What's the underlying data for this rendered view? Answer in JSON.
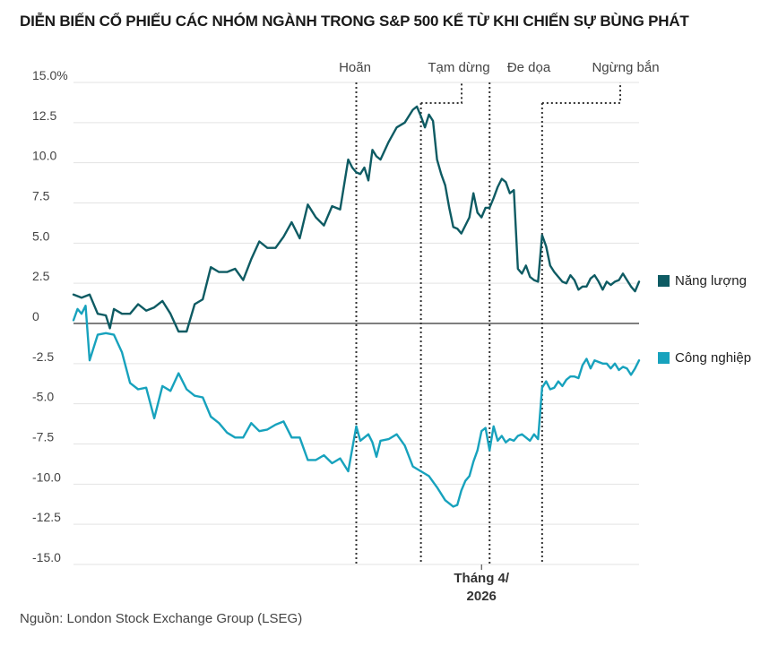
{
  "title": "DIỄN BIẾN CỔ PHIẾU CÁC NHÓM NGÀNH TRONG S&P 500 KỂ TỪ KHI CHIẾN SỰ BÙNG PHÁT",
  "source": "Nguồn: London Stock Exchange Group (LSEG)",
  "chart_data": {
    "type": "line",
    "title": "DIỄN BIẾN CỔ PHIẾU CÁC NHÓM NGÀNH TRONG S&P 500 KỂ TỪ KHI CHIẾN SỰ BÙNG PHÁT",
    "ylim": [
      -15,
      15
    ],
    "xlim": [
      0,
      140
    ],
    "y_ticks": [
      "15.0%",
      "12.5",
      "10.0",
      "7.5",
      "5.0",
      "2.5",
      "0",
      "-2.5",
      "-5.0",
      "-7.5",
      "-10.0",
      "-12.5",
      "-15.0"
    ],
    "y_tick_values": [
      15,
      12.5,
      10,
      7.5,
      5,
      2.5,
      0,
      -2.5,
      -5,
      -7.5,
      -10,
      -12.5,
      -15
    ],
    "x_label_line1": "Tháng 4/",
    "x_label_line2": "2026",
    "x_label_at": 101,
    "events": [
      {
        "label": "Hoãn",
        "x": 70
      },
      {
        "label": "Tạm dừng",
        "x": 86
      },
      {
        "label": "Đe dọa",
        "x": 103
      },
      {
        "label": "Ngừng bắn",
        "x": 116
      }
    ],
    "series": [
      {
        "name": "Năng lượng",
        "color": "#0e5b63",
        "x": [
          0,
          2,
          4,
          6,
          8,
          9,
          10,
          12,
          14,
          16,
          18,
          20,
          22,
          24,
          26,
          28,
          30,
          32,
          34,
          36,
          38,
          40,
          42,
          44,
          46,
          48,
          50,
          52,
          54,
          56,
          58,
          60,
          62,
          64,
          66,
          68,
          69,
          70,
          71,
          72,
          73,
          74,
          75,
          76,
          78,
          80,
          82,
          84,
          85,
          86,
          87,
          88,
          89,
          90,
          91,
          92,
          93,
          94,
          95,
          96,
          97,
          98,
          99,
          100,
          101,
          102,
          103,
          104,
          105,
          106,
          107,
          108,
          109,
          110,
          111,
          112,
          113,
          114,
          115,
          116,
          117,
          118,
          119,
          120,
          121,
          122,
          123,
          124,
          125,
          126,
          127,
          128,
          129,
          130,
          131,
          132,
          133,
          134,
          135,
          136,
          137,
          138,
          139,
          140
        ],
        "values": [
          1.8,
          1.6,
          1.8,
          0.6,
          0.5,
          -0.3,
          0.9,
          0.6,
          0.6,
          1.2,
          0.8,
          1.0,
          1.4,
          0.6,
          -0.5,
          -0.5,
          1.2,
          1.5,
          3.5,
          3.2,
          3.2,
          3.4,
          2.7,
          4.0,
          5.1,
          4.7,
          4.7,
          5.4,
          6.3,
          5.3,
          7.4,
          6.6,
          6.1,
          7.3,
          7.1,
          10.2,
          9.7,
          9.4,
          9.3,
          9.7,
          8.9,
          10.8,
          10.4,
          10.2,
          11.3,
          12.2,
          12.5,
          13.3,
          13.5,
          12.9,
          12.2,
          13.0,
          12.6,
          10.2,
          9.3,
          8.6,
          7.2,
          6.0,
          5.9,
          5.6,
          6.1,
          6.6,
          8.1,
          6.9,
          6.6,
          7.2,
          7.2,
          7.8,
          8.5,
          9.0,
          8.8,
          8.1,
          8.3,
          3.4,
          3.1,
          3.6,
          2.9,
          2.7,
          2.6,
          5.5,
          4.8,
          3.6,
          3.2,
          2.9,
          2.6,
          2.5,
          3.0,
          2.7,
          2.1,
          2.3,
          2.3,
          2.8,
          3.0,
          2.6,
          2.1,
          2.6,
          2.4,
          2.6,
          2.7,
          3.1,
          2.7,
          2.3,
          2.0,
          2.6
        ]
      },
      {
        "name": "Công nghiệp",
        "color": "#17a2bd",
        "x": [
          0,
          1,
          2,
          3,
          4,
          6,
          8,
          10,
          12,
          14,
          16,
          18,
          20,
          22,
          24,
          26,
          28,
          30,
          32,
          34,
          36,
          38,
          40,
          42,
          44,
          46,
          48,
          50,
          52,
          54,
          56,
          58,
          60,
          62,
          64,
          66,
          68,
          69,
          70,
          71,
          72,
          73,
          74,
          75,
          76,
          78,
          80,
          82,
          84,
          86,
          88,
          90,
          92,
          94,
          95,
          96,
          97,
          98,
          99,
          100,
          101,
          102,
          103,
          104,
          105,
          106,
          107,
          108,
          109,
          110,
          111,
          112,
          113,
          114,
          115,
          116,
          117,
          118,
          119,
          120,
          121,
          122,
          123,
          124,
          125,
          126,
          127,
          128,
          129,
          130,
          131,
          132,
          133,
          134,
          135,
          136,
          137,
          138,
          139,
          140
        ],
        "values": [
          0.2,
          0.9,
          0.6,
          1.1,
          -2.3,
          -0.7,
          -0.6,
          -0.7,
          -1.8,
          -3.7,
          -4.1,
          -4.0,
          -5.9,
          -3.9,
          -4.2,
          -3.1,
          -4.1,
          -4.5,
          -4.6,
          -5.8,
          -6.2,
          -6.8,
          -7.1,
          -7.1,
          -6.2,
          -6.7,
          -6.6,
          -6.3,
          -6.1,
          -7.1,
          -7.1,
          -8.5,
          -8.5,
          -8.2,
          -8.7,
          -8.4,
          -9.2,
          -7.8,
          -6.4,
          -7.3,
          -7.1,
          -6.9,
          -7.4,
          -8.3,
          -7.3,
          -7.2,
          -6.9,
          -7.6,
          -8.9,
          -9.2,
          -9.5,
          -10.2,
          -11.0,
          -11.4,
          -11.3,
          -10.4,
          -9.8,
          -9.5,
          -8.6,
          -7.9,
          -6.7,
          -6.5,
          -7.9,
          -6.4,
          -7.3,
          -7.0,
          -7.4,
          -7.2,
          -7.3,
          -7.0,
          -6.9,
          -7.1,
          -7.3,
          -6.9,
          -7.2,
          -4.0,
          -3.6,
          -4.1,
          -4.0,
          -3.6,
          -3.9,
          -3.5,
          -3.3,
          -3.3,
          -3.4,
          -2.6,
          -2.2,
          -2.8,
          -2.3,
          -2.4,
          -2.5,
          -2.5,
          -2.8,
          -2.5,
          -2.9,
          -2.7,
          -2.8,
          -3.2,
          -2.8,
          -2.3
        ]
      }
    ]
  }
}
